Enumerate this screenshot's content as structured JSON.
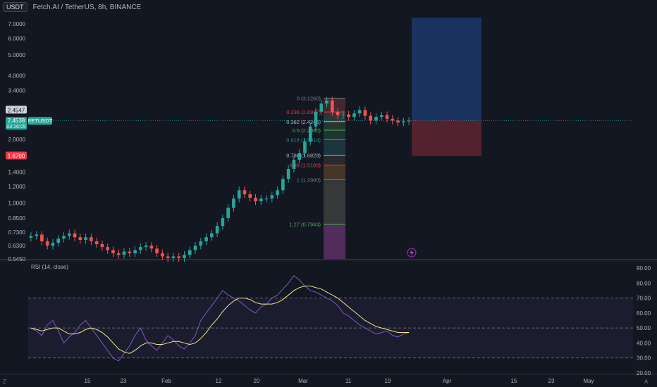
{
  "header": {
    "currency_button": "USDT",
    "symbol_title": "Fetch.AI / TetherUS, 8h, BINANCE"
  },
  "price_axis": {
    "ticks": [
      "7.0000",
      "6.0000",
      "5.0000",
      "4.0000",
      "3.4000",
      "2.8000",
      "2.0000",
      "1.4000",
      "1.2000",
      "1.0000",
      "0.8500",
      "0.7300",
      "0.6300",
      "0.5450"
    ],
    "current_price_label": "2.4547",
    "last_price_label": "2.4538",
    "countdown": "03:16:05",
    "symbol_tag": "FETUSDT",
    "stop_price_label": "1.6700",
    "colors": {
      "bull": "#26a69a",
      "bear": "#ef5350",
      "stop": "#f23645",
      "panel_bg": "#131722"
    }
  },
  "time_axis": {
    "labels": [
      "15",
      "23",
      "Feb",
      "12",
      "20",
      "Mar",
      "11",
      "19",
      "Apr",
      "15",
      "23",
      "May"
    ]
  },
  "fib": {
    "levels": [
      {
        "ratio": "0",
        "price": "(3.1260)",
        "value": 3.126,
        "color": "#787b86"
      },
      {
        "ratio": "0.236",
        "price": "(2.6927)",
        "value": 2.6927,
        "color": "#f23645"
      },
      {
        "ratio": "0.382",
        "price": "(2.4246)",
        "value": 2.4246,
        "color": "#b2b5be"
      },
      {
        "ratio": "0.5",
        "price": "(2.2080)",
        "value": 2.208,
        "color": "#4caf50"
      },
      {
        "ratio": "0.618",
        "price": "(1.9914)",
        "value": 1.9914,
        "color": "#089981"
      },
      {
        "ratio": "0.786",
        "price": "(1.6829)",
        "value": 1.6829,
        "color": "#b2b5be"
      },
      {
        "ratio": "0.88",
        "price": "(1.5103)",
        "value": 1.5103,
        "color": "#f23645"
      },
      {
        "ratio": "1",
        "price": "(1.2900)",
        "value": 1.29,
        "color": "#787b86"
      },
      {
        "ratio": "1.27",
        "price": "(0.7943)",
        "value": 0.7943,
        "color": "#4caf50"
      }
    ]
  },
  "position": {
    "entry": 2.4538,
    "target": 7.5,
    "stop": 1.67
  },
  "rsi": {
    "title": "RSI (14, close)",
    "ticks": [
      "90.00",
      "80.00",
      "70.00",
      "60.00",
      "50.00",
      "40.00",
      "30.00",
      "20.00"
    ],
    "upper_band": 70,
    "lower_band": 30,
    "middle_band": 50
  },
  "misc": {
    "lightning_icon": "lightning-icon",
    "z_button": "Z",
    "a_button": "A"
  },
  "chart_data": {
    "type": "candlestick",
    "title": "",
    "y_scale": "log",
    "ylim": [
      0.545,
      7.8
    ],
    "approx_closes": [
      0.7,
      0.71,
      0.66,
      0.63,
      0.65,
      0.68,
      0.7,
      0.72,
      0.69,
      0.67,
      0.69,
      0.66,
      0.64,
      0.62,
      0.6,
      0.58,
      0.57,
      0.59,
      0.58,
      0.6,
      0.62,
      0.63,
      0.61,
      0.58,
      0.56,
      0.55,
      0.56,
      0.55,
      0.57,
      0.6,
      0.63,
      0.66,
      0.69,
      0.72,
      0.78,
      0.85,
      0.95,
      1.05,
      1.15,
      1.1,
      1.06,
      1.02,
      1.05,
      1.05,
      1.09,
      1.15,
      1.3,
      1.45,
      1.6,
      1.72,
      1.95,
      2.3,
      2.7,
      2.95,
      3.05,
      2.7,
      2.6,
      2.62,
      2.55,
      2.65,
      2.75,
      2.58,
      2.45,
      2.55,
      2.6,
      2.5,
      2.45,
      2.4,
      2.43,
      2.45
    ],
    "rsi_values": [
      50,
      48,
      45,
      52,
      55,
      48,
      40,
      44,
      47,
      52,
      55,
      50,
      45,
      40,
      35,
      30,
      28,
      33,
      38,
      45,
      50,
      42,
      38,
      35,
      40,
      45,
      42,
      38,
      36,
      40,
      45,
      55,
      60,
      65,
      70,
      75,
      72,
      70,
      68,
      65,
      62,
      60,
      64,
      66,
      70,
      72,
      76,
      80,
      85,
      82,
      78,
      75,
      74,
      72,
      70,
      68,
      65,
      60,
      58,
      55,
      52,
      50,
      48,
      46,
      47,
      48,
      45,
      44,
      46,
      47
    ],
    "rsi_ma": [
      50,
      49,
      48,
      49,
      50,
      50,
      48,
      46,
      46,
      47,
      49,
      50,
      49,
      47,
      44,
      40,
      36,
      34,
      33,
      35,
      38,
      40,
      40,
      39,
      39,
      40,
      41,
      41,
      40,
      39,
      40,
      43,
      47,
      52,
      56,
      61,
      65,
      68,
      70,
      70,
      69,
      67,
      66,
      66,
      66,
      67,
      69,
      72,
      75,
      77,
      78,
      78,
      77,
      76,
      74,
      72,
      70,
      67,
      64,
      61,
      58,
      55,
      53,
      51,
      50,
      49,
      48,
      47,
      47,
      47
    ]
  }
}
